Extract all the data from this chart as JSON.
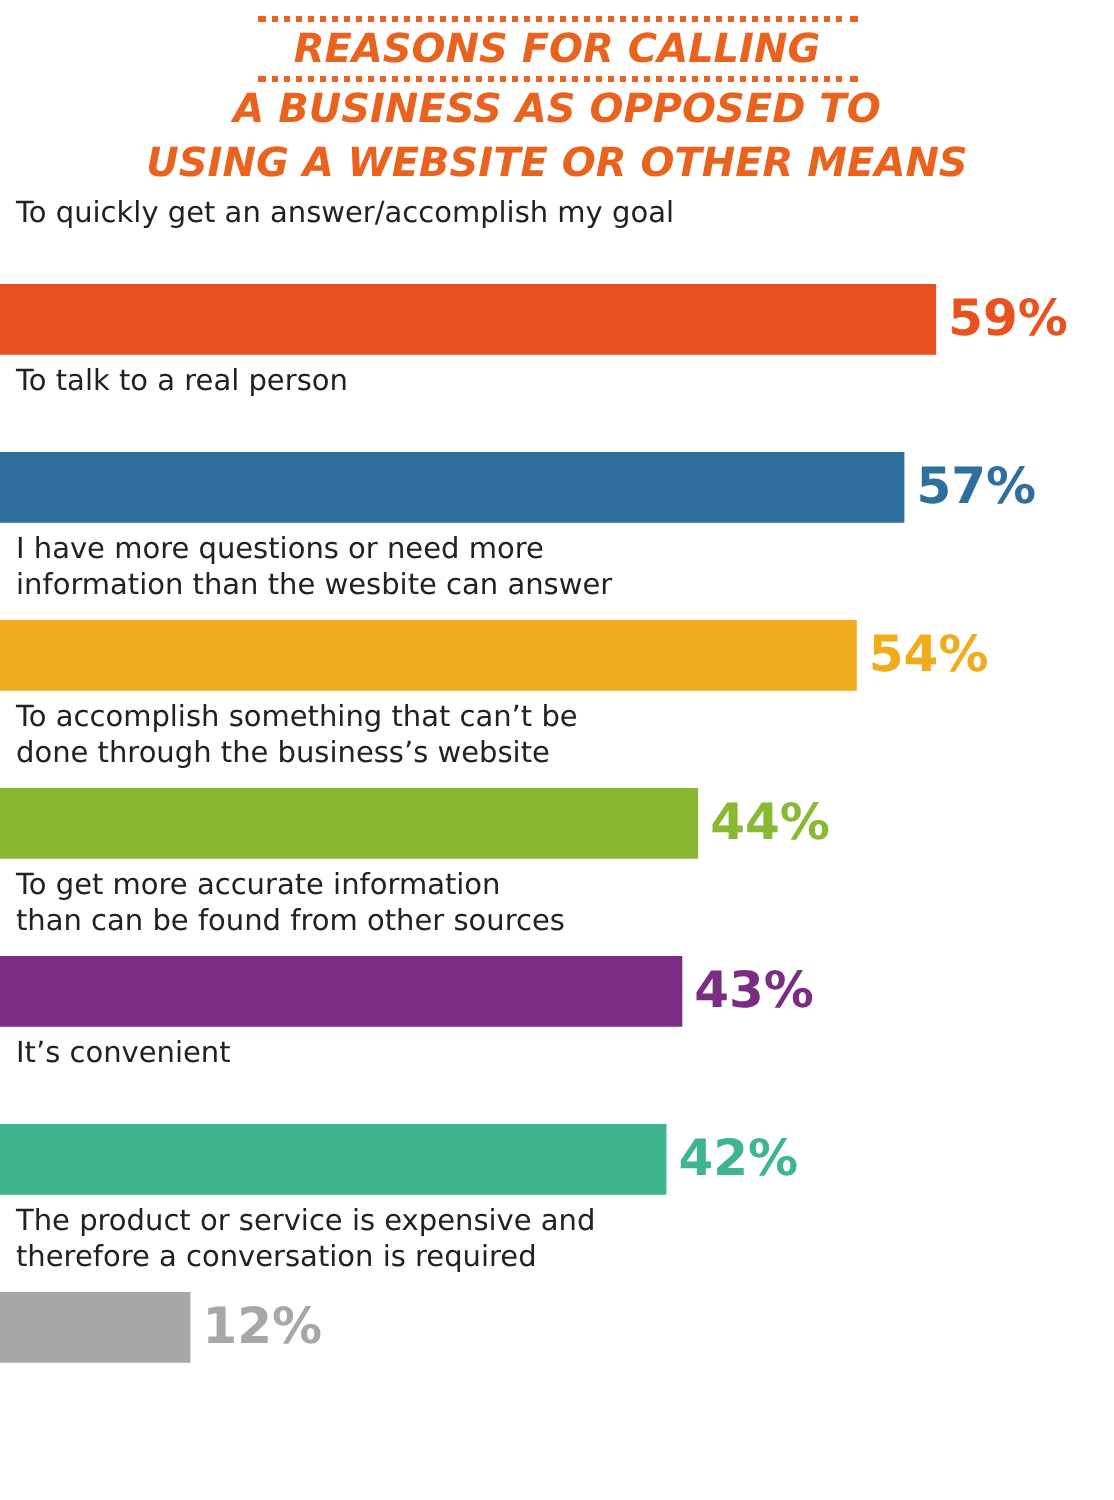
{
  "chart_data": {
    "type": "bar",
    "orientation": "horizontal",
    "title": "REASONS FOR CALLING\nA BUSINESS AS OPPOSED TO\nUSING A WEBSITE OR OTHER MEANS",
    "categories": [
      "To quickly get an answer/accomplish my goal",
      "To talk to a real person",
      "I have more questions or need more\ninformation than the wesbite can answer",
      "To accomplish something that can’t be\ndone through the business’s website",
      "To get more accurate information\nthan can be found from other sources",
      "It’s convenient",
      "The product or service is expensive and\ntherefore a conversation is required"
    ],
    "values": [
      59,
      57,
      54,
      44,
      43,
      42,
      12
    ],
    "colors": [
      "#e9511f",
      "#2e6f9e",
      "#f0ac1c",
      "#8ab833",
      "#7b2d83",
      "#3fb58f",
      "#a7a7a7"
    ],
    "value_labels": [
      "59%",
      "57%",
      "54%",
      "44%",
      "43%",
      "42%",
      "12%"
    ]
  }
}
